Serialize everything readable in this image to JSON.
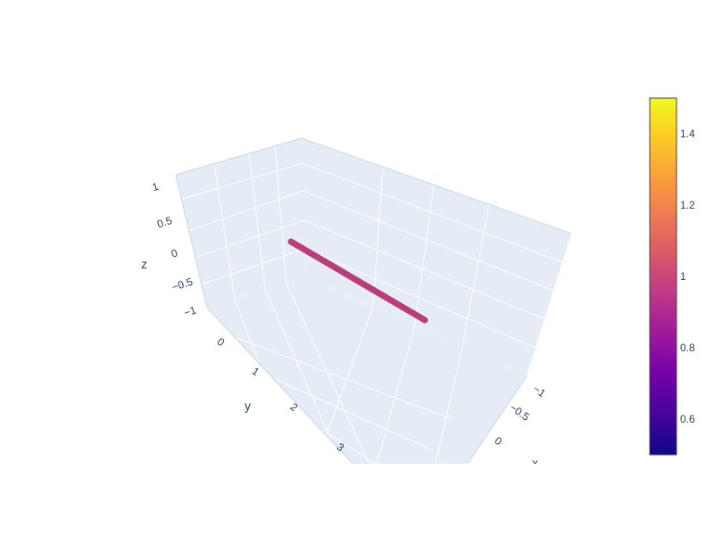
{
  "chart_data": {
    "type": "line3d",
    "title": "",
    "axes": {
      "x": {
        "title": "x",
        "ticks": [
          "−1",
          "−0.5",
          "0"
        ]
      },
      "y": {
        "title": "y",
        "ticks": [
          "0",
          "1",
          "2",
          "3"
        ]
      },
      "z": {
        "title": "z",
        "ticks": [
          "1",
          "0.5",
          "0",
          "−0.5",
          "−1"
        ]
      }
    },
    "series": [
      {
        "x": [
          0,
          0
        ],
        "y": [
          0,
          4
        ],
        "z": [
          0,
          0
        ],
        "color_value": 1,
        "color": "#b83d7a"
      }
    ],
    "colorbar": {
      "range": [
        0.5,
        1.5
      ],
      "ticks": [
        "1.4",
        "1.2",
        "1",
        "0.8",
        "0.6"
      ],
      "tick_values": [
        1.4,
        1.2,
        1.0,
        0.8,
        0.6
      ],
      "colorscale": [
        "#0d0887",
        "#46039f",
        "#7201a8",
        "#9c179e",
        "#bd3786",
        "#d8576b",
        "#ed7953",
        "#fb9f3a",
        "#fdca26",
        "#f0f921"
      ]
    },
    "background_color": "#e5ecf6",
    "grid": true
  }
}
